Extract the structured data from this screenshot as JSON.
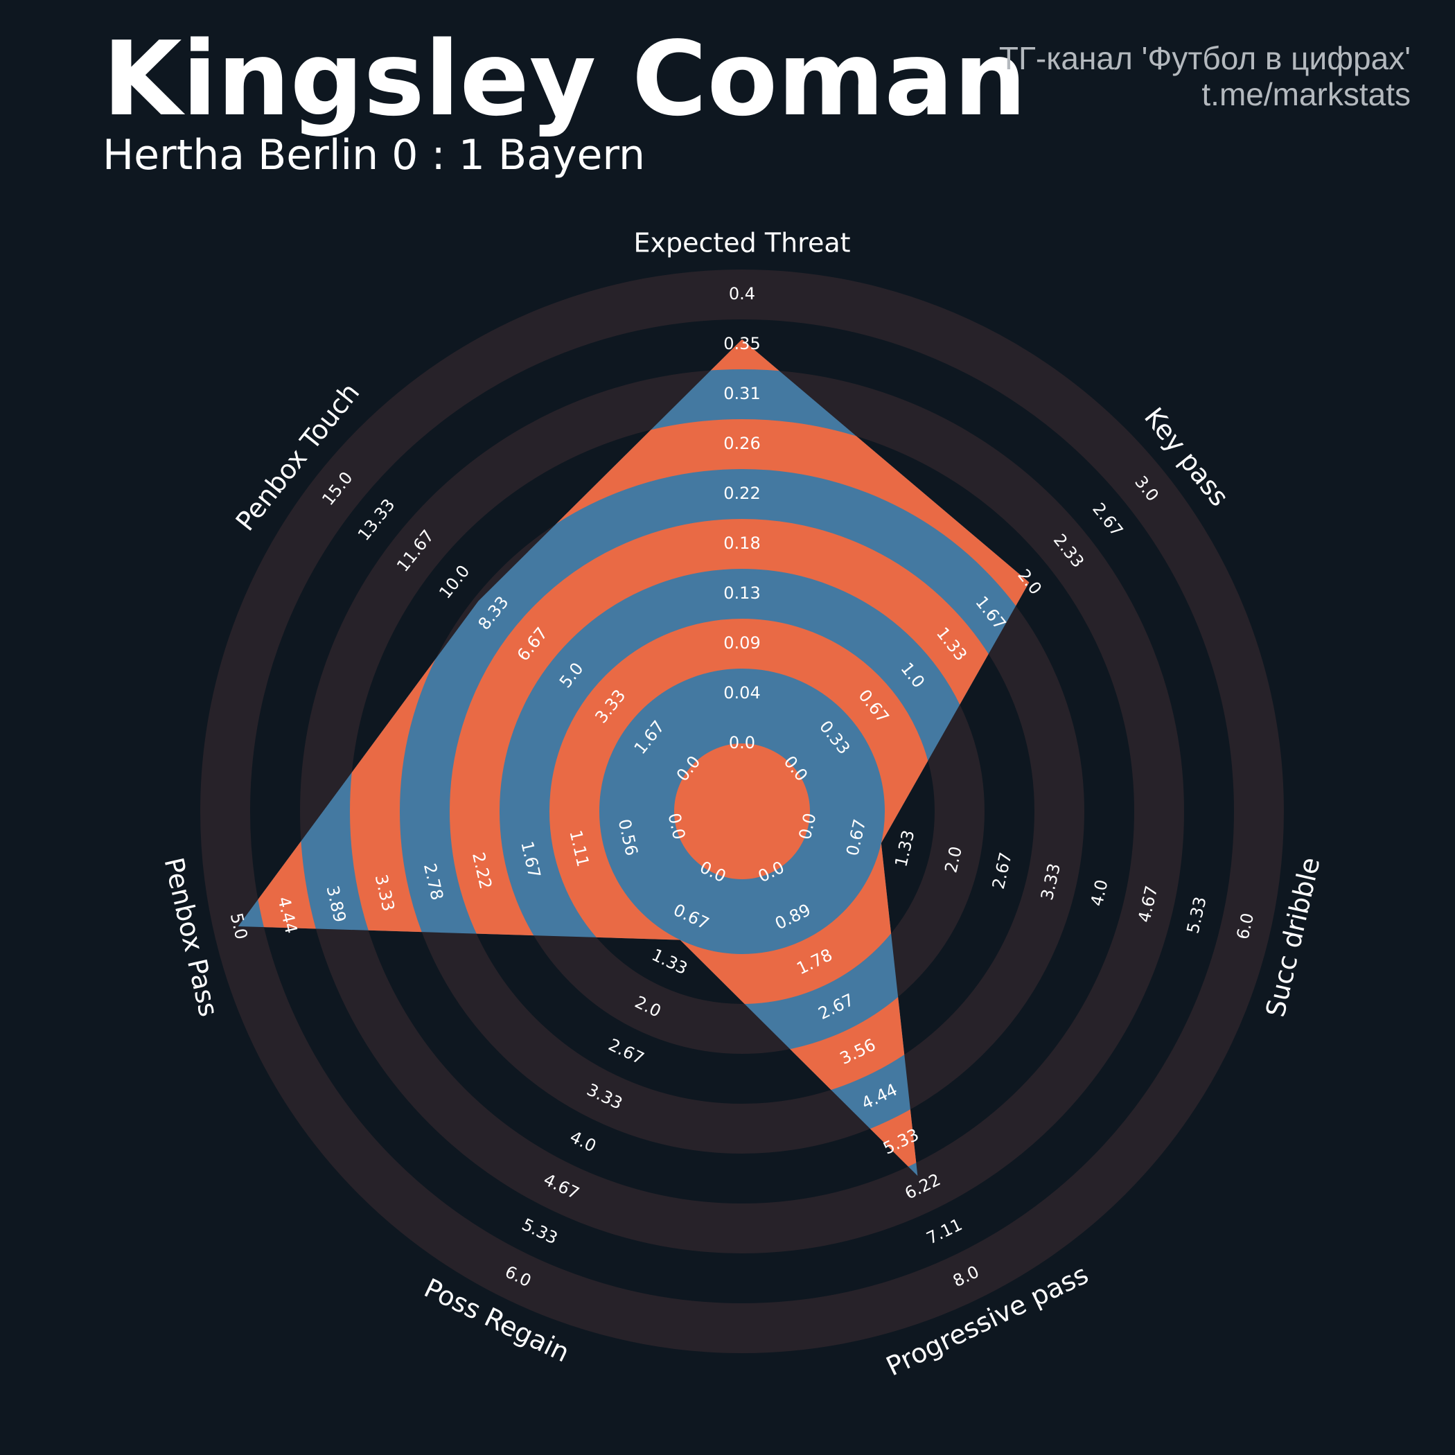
{
  "header": {
    "title": "Kingsley Coman",
    "subtitle": "Hertha Berlin 0 : 1 Bayern",
    "credit_line1": "ТГ-канал 'Футбол в цифрах'",
    "credit_line2": "t.me/markstats"
  },
  "colors": {
    "background": "#0e1720",
    "ring": "#272229",
    "fill_blue": "#4479a1",
    "fill_orange": "#e96a45",
    "text": "#ffffff",
    "credit": "#b4b9be"
  },
  "chart_data": {
    "type": "radar",
    "title": "",
    "axes": [
      {
        "name": "Expected Threat",
        "value": 0.36,
        "min": 0.0,
        "max": 0.4,
        "ticks": [
          "0.0",
          "0.04",
          "0.09",
          "0.13",
          "0.18",
          "0.22",
          "0.26",
          "0.31",
          "0.35",
          "0.4"
        ]
      },
      {
        "name": "Key pass",
        "value": 2.0,
        "min": 0.0,
        "max": 3.0,
        "ticks": [
          "0.0",
          "0.33",
          "0.67",
          "1.0",
          "1.33",
          "1.67",
          "2.0",
          "2.33",
          "2.67",
          "3.0"
        ]
      },
      {
        "name": "Succ dribble",
        "value": 1.0,
        "min": 0.0,
        "max": 6.0,
        "ticks": [
          "0.0",
          "0.67",
          "1.33",
          "2.0",
          "2.67",
          "3.33",
          "4.0",
          "4.67",
          "5.33",
          "6.0"
        ]
      },
      {
        "name": "Progressive pass",
        "value": 6.0,
        "min": 0.0,
        "max": 8.0,
        "ticks": [
          "0.0",
          "0.89",
          "1.78",
          "2.67",
          "3.56",
          "4.44",
          "5.33",
          "6.22",
          "7.11",
          "8.0"
        ]
      },
      {
        "name": "Poss Regain",
        "value": 1.0,
        "min": 0.0,
        "max": 6.0,
        "ticks": [
          "0.0",
          "0.67",
          "1.33",
          "2.0",
          "2.67",
          "3.33",
          "4.0",
          "4.67",
          "5.33",
          "6.0"
        ]
      },
      {
        "name": "Penbox Pass",
        "value": 5.0,
        "min": 0.0,
        "max": 5.0,
        "ticks": [
          "0.0",
          "0.56",
          "1.11",
          "1.67",
          "2.22",
          "2.78",
          "3.33",
          "3.89",
          "4.44",
          "5.0"
        ]
      },
      {
        "name": "Penbox Touch",
        "value": 9.0,
        "min": 0.0,
        "max": 15.0,
        "ticks": [
          "0.0",
          "1.67",
          "3.33",
          "5.0",
          "6.67",
          "8.33",
          "10.0",
          "11.67",
          "13.33",
          "15.0"
        ]
      }
    ]
  }
}
